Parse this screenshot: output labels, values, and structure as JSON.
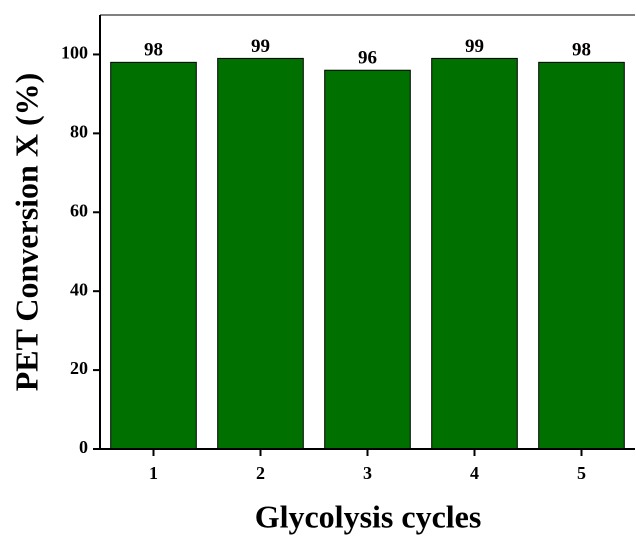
{
  "chart_data": {
    "type": "bar",
    "xlabel": "Glycolysis cycles",
    "ylabel": "PET Conversion X (%)",
    "categories": [
      "1",
      "2",
      "3",
      "4",
      "5"
    ],
    "values": [
      98,
      99,
      96,
      99,
      98
    ],
    "color": "#007000",
    "ylim": [
      0,
      110
    ],
    "yticks": [
      0,
      20,
      40,
      60,
      80,
      100
    ],
    "grid": false
  }
}
